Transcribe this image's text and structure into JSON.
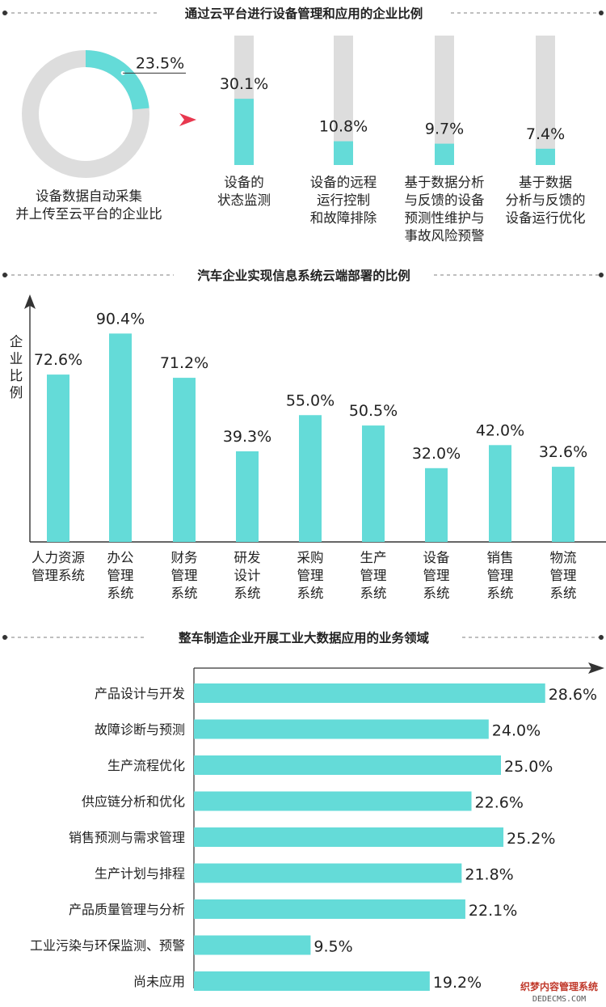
{
  "colors": {
    "bar": "#64DBD8",
    "track": "#DDDDDD",
    "axis": "#333333",
    "accent": "#E8384F",
    "text": "#222222"
  },
  "section1": {
    "title": "通过云平台进行设备管理和应用的企业比例"
  },
  "section2": {
    "title": "汽车企业实现信息系统云端部署的比例"
  },
  "section3": {
    "title": "整车制造企业开展工业大数据应用的业务领域"
  },
  "watermark": {
    "line1": "织梦内容管理系统",
    "line2": "DEDECMS.COM"
  },
  "chart_data": [
    {
      "type": "pie",
      "title": "",
      "slices": [
        {
          "label": "设备数据自动采集并上传至云平台的企业比",
          "value": 23.5,
          "value_label": "23.5%"
        }
      ],
      "caption_lines": [
        "设备数据自动采集",
        "并上传至云平台的企业比"
      ]
    },
    {
      "type": "bar",
      "title": "",
      "ylim": [
        0,
        100
      ],
      "categories": [
        {
          "value": 30.1,
          "value_label": "30.1%",
          "lines": [
            "设备的",
            "状态监测"
          ]
        },
        {
          "value": 10.8,
          "value_label": "10.8%",
          "lines": [
            "设备的远程",
            "运行控制",
            "和故障排除"
          ]
        },
        {
          "value": 9.7,
          "value_label": "9.7%",
          "lines": [
            "基于数据分析",
            "与反馈的设备",
            "预测性维护与",
            "事故风险预警"
          ]
        },
        {
          "value": 7.4,
          "value_label": "7.4%",
          "lines": [
            "基于数据",
            "分析与反馈的",
            "设备运行优化"
          ]
        }
      ]
    },
    {
      "type": "bar",
      "title": "",
      "ylabel": "企业比例",
      "ylabel_chars": [
        "企",
        "业",
        "比",
        "例"
      ],
      "ylim": [
        0,
        100
      ],
      "categories": [
        {
          "value": 72.6,
          "value_label": "72.6%",
          "lines": [
            "人力资源",
            "管理系统"
          ]
        },
        {
          "value": 90.4,
          "value_label": "90.4%",
          "lines": [
            "办公",
            "管理",
            "系统"
          ]
        },
        {
          "value": 71.2,
          "value_label": "71.2%",
          "lines": [
            "财务",
            "管理",
            "系统"
          ]
        },
        {
          "value": 39.3,
          "value_label": "39.3%",
          "lines": [
            "研发",
            "设计",
            "系统"
          ]
        },
        {
          "value": 55.0,
          "value_label": "55.0%",
          "lines": [
            "采购",
            "管理",
            "系统"
          ]
        },
        {
          "value": 50.5,
          "value_label": "50.5%",
          "lines": [
            "生产",
            "管理",
            "系统"
          ]
        },
        {
          "value": 32.0,
          "value_label": "32.0%",
          "lines": [
            "设备",
            "管理",
            "系统"
          ]
        },
        {
          "value": 42.0,
          "value_label": "42.0%",
          "lines": [
            "销售",
            "管理",
            "系统"
          ]
        },
        {
          "value": 32.6,
          "value_label": "32.6%",
          "lines": [
            "物流",
            "管理",
            "系统"
          ]
        }
      ]
    },
    {
      "type": "bar",
      "orientation": "horizontal",
      "title": "",
      "xlim": [
        0,
        31.2
      ],
      "categories": [
        {
          "label": "产品设计与开发",
          "value": 28.6,
          "value_label": "28.6%"
        },
        {
          "label": "故障诊断与预测",
          "value": 24.0,
          "value_label": "24.0%"
        },
        {
          "label": "生产流程优化",
          "value": 25.0,
          "value_label": "25.0%"
        },
        {
          "label": "供应链分析和优化",
          "value": 22.6,
          "value_label": "22.6%"
        },
        {
          "label": "销售预测与需求管理",
          "value": 25.2,
          "value_label": "25.2%"
        },
        {
          "label": "生产计划与排程",
          "value": 21.8,
          "value_label": "21.8%"
        },
        {
          "label": "产品质量管理与分析",
          "value": 22.1,
          "value_label": "22.1%"
        },
        {
          "label": "工业污染与环保监测、预警",
          "value": 9.5,
          "value_label": "9.5%"
        },
        {
          "label": "尚未应用",
          "value": 19.2,
          "value_label": "19.2%"
        }
      ]
    }
  ]
}
